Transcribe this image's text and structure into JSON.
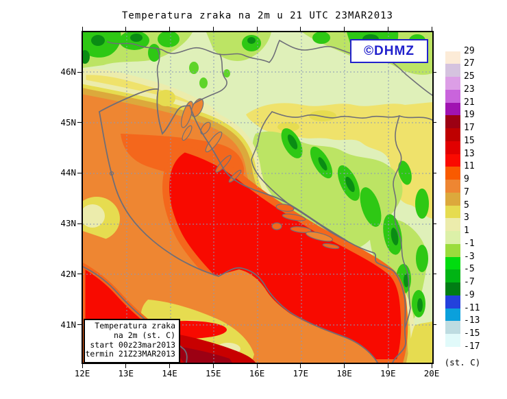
{
  "title": "Temperatura zraka na 2m u 21 UTC 23MAR2013",
  "logo": {
    "text": "©DHMZ",
    "color": "#2121CC"
  },
  "legend_box": {
    "lines": [
      "Temperatura zraka",
      "na 2m (st. C)",
      "start 00z23mar2013",
      "termin 21Z23MAR2013"
    ]
  },
  "axes": {
    "lat_labels": [
      "46N",
      "45N",
      "44N",
      "43N",
      "42N",
      "41N"
    ],
    "lon_labels": [
      "12E",
      "13E",
      "14E",
      "15E",
      "16E",
      "17E",
      "18E",
      "19E",
      "20E"
    ]
  },
  "colorbar": {
    "unit_label": "(st. C)",
    "tick_labels": [
      "29",
      "27",
      "25",
      "23",
      "21",
      "19",
      "17",
      "15",
      "13",
      "11",
      "9",
      "7",
      "5",
      "3",
      "1",
      "-1",
      "-3",
      "-5",
      "-7",
      "-9",
      "-11",
      "-13",
      "-15",
      "-17"
    ],
    "band_colors_top_to_bottom": [
      "#FCEBD7",
      "#D5C3DF",
      "#DC9EE6",
      "#C964DC",
      "#A013B1",
      "#9C0013",
      "#BE0000",
      "#E10000",
      "#FA0A00",
      "#F95A00",
      "#EE8632",
      "#DCA93C",
      "#E6DC50",
      "#ECECAC",
      "#DCF0A8",
      "#9BDC3C",
      "#00DC0F",
      "#00B414",
      "#007D14",
      "#2341DC",
      "#0AA0DC",
      "#BEDCE1",
      "#E1FAFA"
    ]
  },
  "map_colors": {
    "sea_warm_red": "#F80A00",
    "coast_orange": "#EE8632",
    "deep_orange": "#F4671C",
    "inland_yellow": "#EFE26B",
    "pale_green": "#DFF0B9",
    "mountain_green": "#2EC814",
    "dark_green": "#0A8C14",
    "hot_dark_red": "#C80000",
    "coastline_gray": "#6E6E78",
    "grid_gray_blue": "#8A98B8"
  }
}
